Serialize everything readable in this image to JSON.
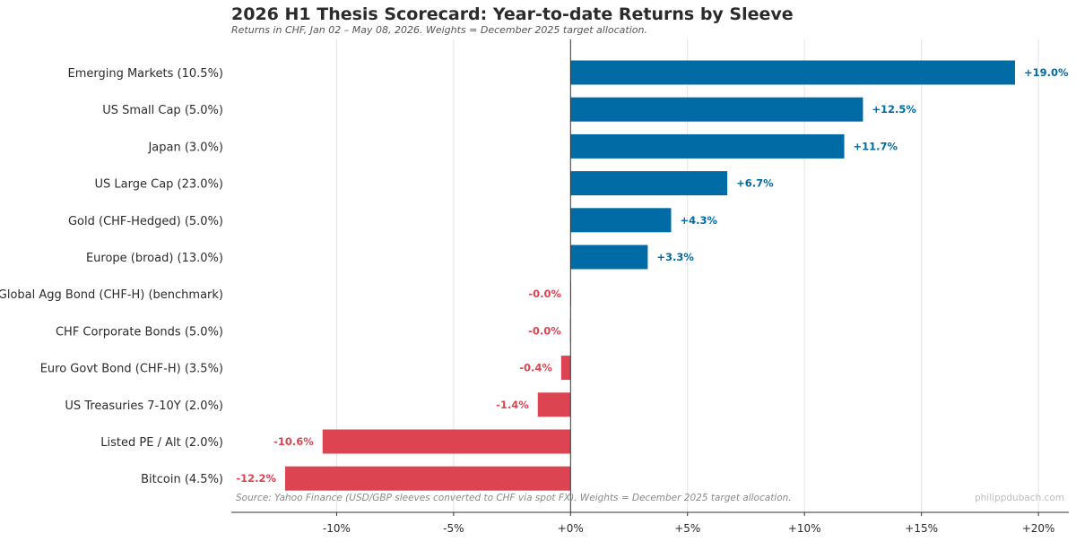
{
  "chart_data": {
    "type": "bar",
    "orientation": "horizontal",
    "title": "2026 H1 Thesis Scorecard: Year-to-date Returns by Sleeve",
    "subtitle": "Returns in CHF, Jan 02 – May 08, 2026. Weights = December 2025 target allocation.",
    "categories": [
      "Emerging Markets  (10.5%)",
      "US Small Cap  (5.0%)",
      "Japan  (3.0%)",
      "US Large Cap  (23.0%)",
      "Gold (CHF-Hedged)  (5.0%)",
      "Europe (broad)  (13.0%)",
      "Global Agg Bond (CHF-H)  (benchmark)",
      "CHF Corporate Bonds  (5.0%)",
      "Euro Govt Bond (CHF-H)  (3.5%)",
      "US Treasuries 7-10Y  (2.0%)",
      "Listed PE / Alt  (2.0%)",
      "Bitcoin  (4.5%)"
    ],
    "values": [
      19.0,
      12.5,
      11.7,
      6.7,
      4.3,
      3.3,
      -0.01,
      -0.02,
      -0.4,
      -1.4,
      -10.6,
      -12.2
    ],
    "value_labels": [
      "+19.0%",
      "+12.5%",
      "+11.7%",
      "+6.7%",
      "+4.3%",
      "+3.3%",
      "-0.0%",
      "-0.0%",
      "-0.4%",
      "-1.4%",
      "-10.6%",
      "-12.2%"
    ],
    "xlim": [
      -14.5,
      21.3
    ],
    "xticks": [
      -10,
      -5,
      0,
      5,
      10,
      15,
      20
    ],
    "xtick_labels": [
      "-10%",
      "-5%",
      "+0%",
      "+5%",
      "+10%",
      "+15%",
      "+20%"
    ],
    "grid": "vertical",
    "colors": {
      "positive": "#006ba4",
      "negative": "#db4450"
    },
    "source": "Source: Yahoo Finance (USD/GBP sleeves converted to CHF via spot FX). Weights = December 2025 target allocation.",
    "credit": "philippdubach.com"
  }
}
